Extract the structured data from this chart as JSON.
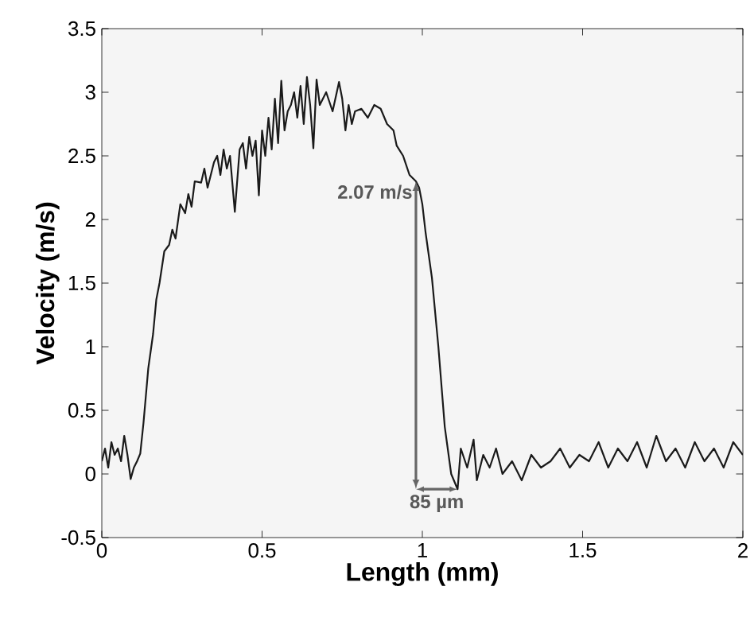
{
  "chart_data": {
    "type": "line",
    "xlabel": "Length (mm)",
    "ylabel": "Velocity (m/s)",
    "xlim": [
      0,
      2
    ],
    "ylim": [
      -0.5,
      3.5
    ],
    "xticks": [
      0,
      0.5,
      1,
      1.5,
      2
    ],
    "yticks": [
      -0.5,
      0,
      0.5,
      1,
      1.5,
      2,
      2.5,
      3,
      3.5
    ],
    "grid": false,
    "marker": "none",
    "line_style": "solid",
    "annotations": [
      {
        "text": "2.07 m/s",
        "x": 0.98,
        "y": 2.3
      },
      {
        "text": "85 µm",
        "x": 1.11,
        "y": -0.12
      }
    ],
    "series": [
      {
        "color": "#1a1a1a",
        "x": [
          0,
          0.01,
          0.02,
          0.03,
          0.04,
          0.05,
          0.06,
          0.07,
          0.08,
          0.09,
          0.1,
          0.11,
          0.12,
          0.13,
          0.145,
          0.16,
          0.17,
          0.18,
          0.195,
          0.21,
          0.22,
          0.23,
          0.245,
          0.26,
          0.27,
          0.28,
          0.29,
          0.31,
          0.32,
          0.33,
          0.35,
          0.36,
          0.37,
          0.38,
          0.39,
          0.4,
          0.415,
          0.43,
          0.44,
          0.45,
          0.46,
          0.47,
          0.48,
          0.49,
          0.5,
          0.51,
          0.52,
          0.53,
          0.54,
          0.55,
          0.56,
          0.57,
          0.58,
          0.59,
          0.6,
          0.61,
          0.62,
          0.63,
          0.64,
          0.65,
          0.66,
          0.67,
          0.68,
          0.7,
          0.72,
          0.74,
          0.75,
          0.76,
          0.77,
          0.78,
          0.79,
          0.81,
          0.83,
          0.85,
          0.87,
          0.89,
          0.91,
          0.92,
          0.94,
          0.96,
          0.98,
          0.99,
          1.0,
          1.01,
          1.03,
          1.05,
          1.07,
          1.09,
          1.11,
          1.12,
          1.14,
          1.16,
          1.17,
          1.19,
          1.21,
          1.23,
          1.25,
          1.28,
          1.31,
          1.34,
          1.37,
          1.4,
          1.43,
          1.46,
          1.49,
          1.52,
          1.55,
          1.58,
          1.61,
          1.64,
          1.67,
          1.7,
          1.73,
          1.76,
          1.79,
          1.82,
          1.85,
          1.88,
          1.91,
          1.94,
          1.97,
          2.0
        ],
        "values": [
          0.1,
          0.2,
          0.05,
          0.25,
          0.15,
          0.2,
          0.1,
          0.3,
          0.15,
          -0.04,
          0.05,
          0.1,
          0.16,
          0.4,
          0.83,
          1.1,
          1.37,
          1.5,
          1.75,
          1.8,
          1.92,
          1.85,
          2.12,
          2.05,
          2.2,
          2.1,
          2.3,
          2.29,
          2.4,
          2.25,
          2.45,
          2.5,
          2.35,
          2.55,
          2.4,
          2.5,
          2.06,
          2.55,
          2.6,
          2.4,
          2.65,
          2.5,
          2.62,
          2.19,
          2.7,
          2.5,
          2.8,
          2.55,
          2.95,
          2.6,
          3.09,
          2.7,
          2.85,
          2.9,
          3.0,
          2.8,
          3.05,
          2.75,
          3.12,
          2.9,
          2.56,
          3.1,
          2.9,
          3.0,
          2.85,
          3.08,
          2.95,
          2.7,
          2.9,
          2.75,
          2.85,
          2.87,
          2.8,
          2.9,
          2.87,
          2.75,
          2.7,
          2.58,
          2.5,
          2.35,
          2.3,
          2.25,
          2.12,
          1.9,
          1.54,
          1.0,
          0.37,
          0.0,
          -0.12,
          0.2,
          0.05,
          0.27,
          -0.05,
          0.15,
          0.05,
          0.2,
          0.0,
          0.1,
          -0.05,
          0.15,
          0.05,
          0.1,
          0.2,
          0.05,
          0.15,
          0.1,
          0.25,
          0.05,
          0.2,
          0.1,
          0.25,
          0.05,
          0.3,
          0.1,
          0.2,
          0.05,
          0.25,
          0.1,
          0.2,
          0.05,
          0.25,
          0.15
        ]
      }
    ]
  }
}
